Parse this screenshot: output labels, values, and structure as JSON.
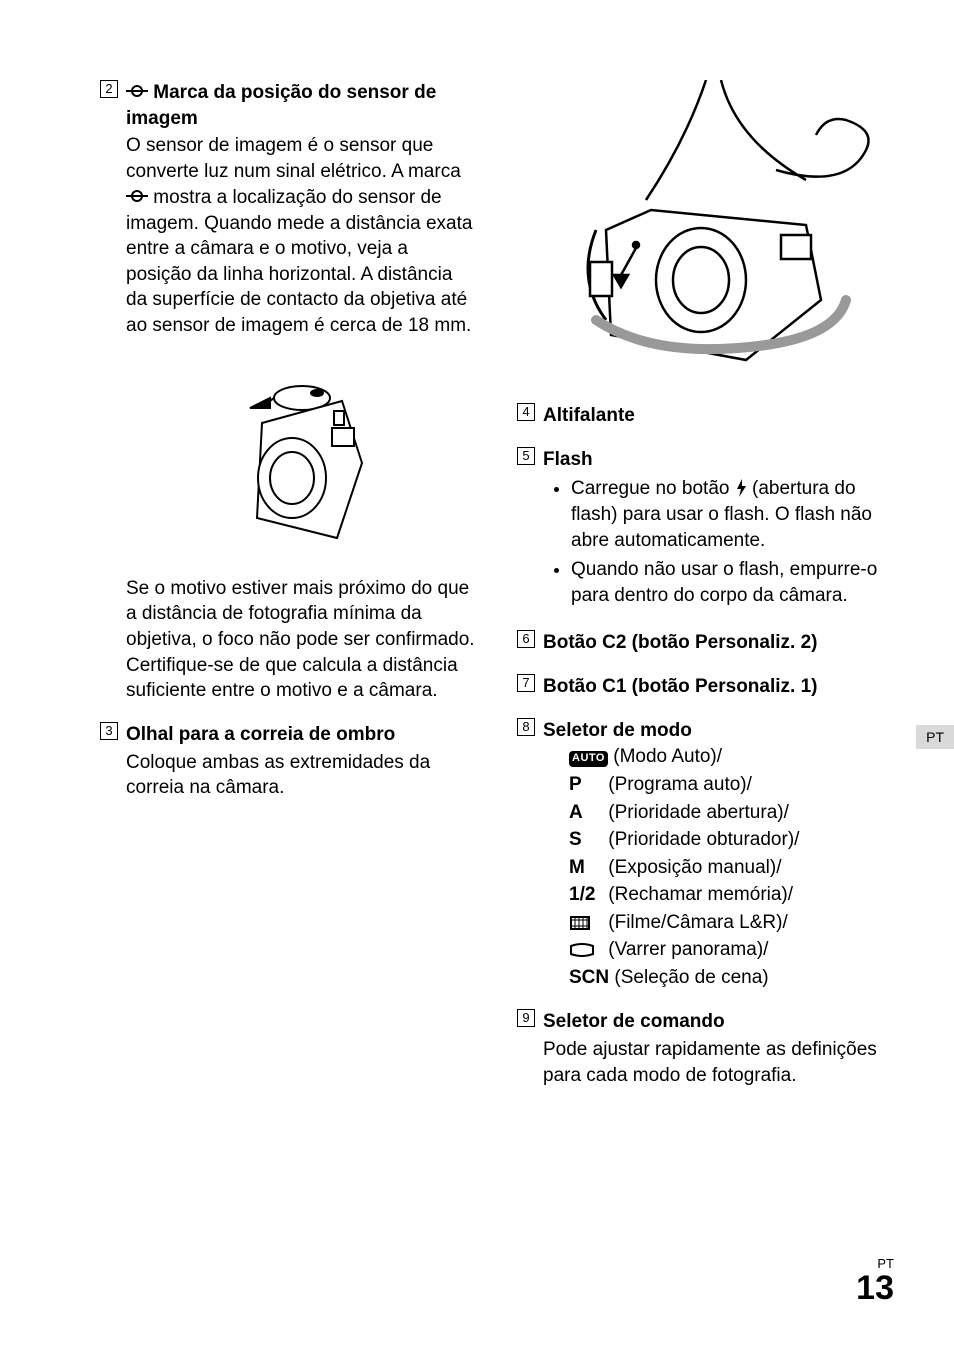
{
  "sideTab": "PT",
  "footer": {
    "lang": "PT",
    "page": "13"
  },
  "left": {
    "item2": {
      "num": "2",
      "title_prefix": " Marca da posição do sensor de imagem",
      "para1": "O sensor de imagem é o sensor que converte luz num sinal elétrico. A marca ",
      "para1_tail": " mostra a localização do sensor de imagem. Quando mede a distância exata entre a câmara e o motivo, veja a posição da linha horizontal. A distância da superfície de contacto da objetiva até ao sensor de imagem é cerca de 18 mm.",
      "para2": "Se o motivo estiver mais próximo do que a distância de fotografia mínima da objetiva, o foco não pode ser confirmado. Certifique-se de que calcula a distância suficiente entre o motivo e a câmara."
    },
    "item3": {
      "num": "3",
      "title": "Olhal para a correia de ombro",
      "text": "Coloque ambas as extremidades da correia na câmara."
    }
  },
  "right": {
    "item4": {
      "num": "4",
      "title": "Altifalante"
    },
    "item5": {
      "num": "5",
      "title": "Flash",
      "bullets": [
        {
          "pre": "Carregue no botão ",
          "post": " (abertura do flash) para usar o flash. O flash não abre automaticamente."
        },
        {
          "pre": "Quando não usar o flash, empurre-o para dentro do corpo da câmara.",
          "post": ""
        }
      ]
    },
    "item6": {
      "num": "6",
      "title": "Botão C2 (botão Personaliz. 2)"
    },
    "item7": {
      "num": "7",
      "title": "Botão C1 (botão Personaliz. 1)"
    },
    "item8": {
      "num": "8",
      "title": "Seletor de modo",
      "modes": [
        {
          "icon": "AUTO",
          "label": " (Modo Auto)/"
        },
        {
          "icon": "P",
          "label": " (Programa auto)/"
        },
        {
          "icon": "A",
          "label": " (Prioridade abertura)/"
        },
        {
          "icon": "S",
          "label": " (Prioridade obturador)/"
        },
        {
          "icon": "M",
          "label": " (Exposição manual)/"
        },
        {
          "icon": "1/2",
          "label": " (Rechamar memória)/"
        },
        {
          "icon": "FILM",
          "label": " (Filme/Câmara L&R)/"
        },
        {
          "icon": "PANO",
          "label": " (Varrer panorama)/"
        },
        {
          "icon": "SCN",
          "label": " (Seleção de cena)"
        }
      ]
    },
    "item9": {
      "num": "9",
      "title": "Seletor de comando",
      "text": "Pode ajustar rapidamente as definições para cada modo de fotografia."
    }
  }
}
